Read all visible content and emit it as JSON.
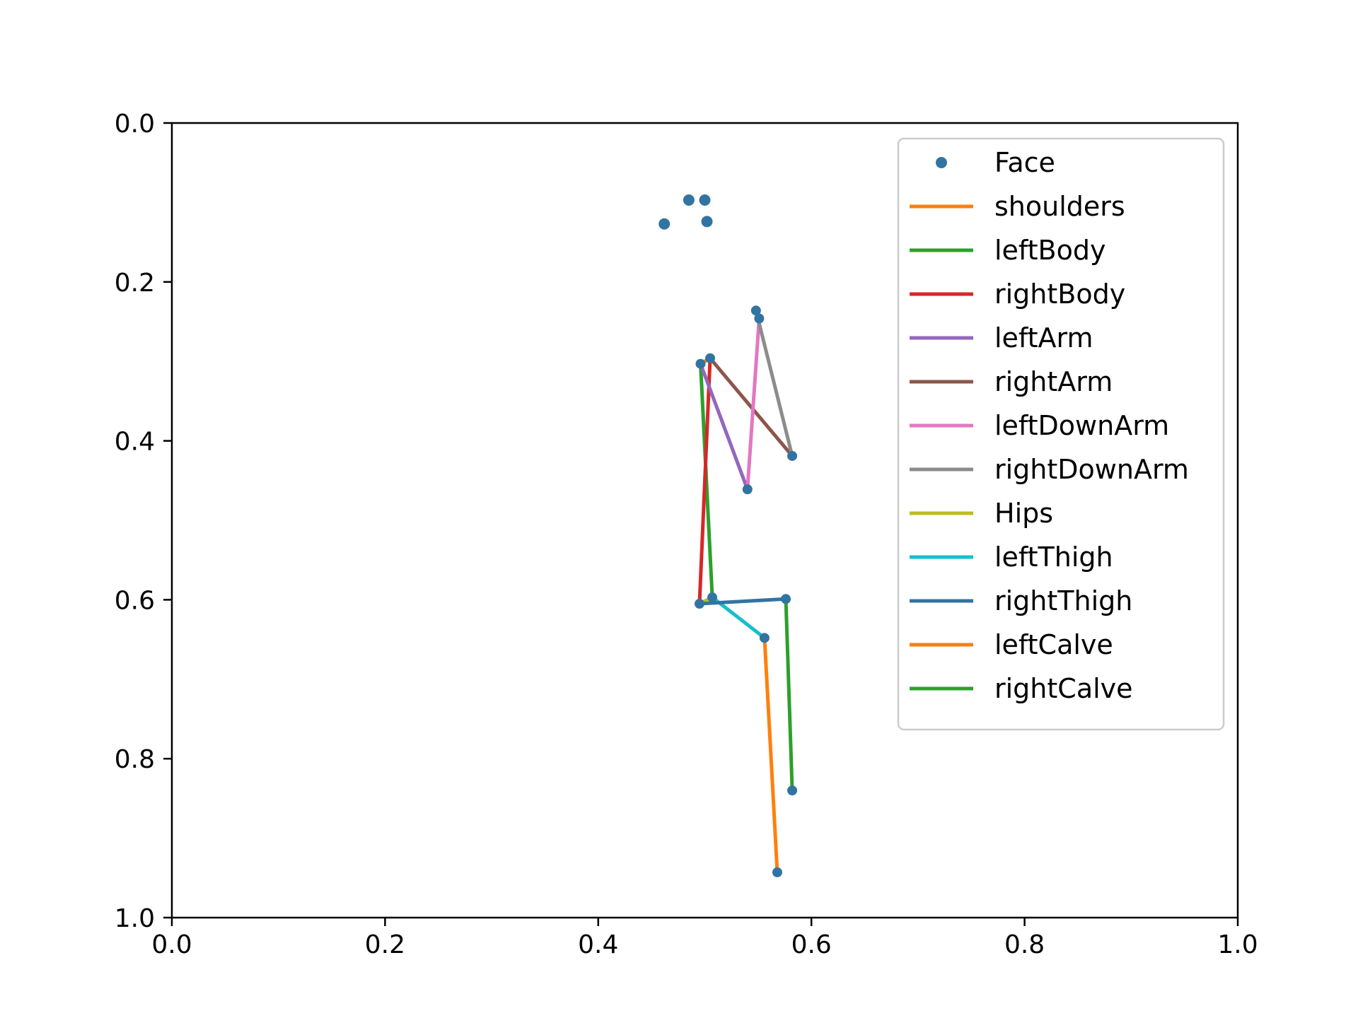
{
  "chart_data": {
    "type": "line",
    "title": "",
    "xlabel": "",
    "ylabel": "",
    "xlim": [
      0.0,
      1.0
    ],
    "ylim": [
      0.0,
      1.0
    ],
    "y_inverted": true,
    "grid": false,
    "legend_position": "top-right",
    "x_ticks": [
      "0.0",
      "0.2",
      "0.4",
      "0.6",
      "0.8",
      "1.0"
    ],
    "y_ticks": [
      "0.0",
      "0.2",
      "0.4",
      "0.6",
      "0.8",
      "1.0"
    ],
    "series": [
      {
        "name": "Face",
        "kind": "points",
        "color": "#3274a1",
        "points": [
          [
            0.462,
            0.127
          ],
          [
            0.485,
            0.097
          ],
          [
            0.5,
            0.097
          ],
          [
            0.502,
            0.124
          ]
        ]
      },
      {
        "name": "shoulders",
        "kind": "line",
        "color": "#ff7f0e",
        "points": [
          [
            0.496,
            0.303
          ],
          [
            0.505,
            0.296
          ]
        ]
      },
      {
        "name": "leftBody",
        "kind": "line",
        "color": "#2ca02c",
        "points": [
          [
            0.496,
            0.303
          ],
          [
            0.507,
            0.597
          ]
        ]
      },
      {
        "name": "rightBody",
        "kind": "line",
        "color": "#d62728",
        "points": [
          [
            0.505,
            0.296
          ],
          [
            0.495,
            0.605
          ]
        ]
      },
      {
        "name": "leftArm",
        "kind": "line",
        "color": "#9467bd",
        "points": [
          [
            0.496,
            0.303
          ],
          [
            0.54,
            0.461
          ]
        ]
      },
      {
        "name": "rightArm",
        "kind": "line",
        "color": "#8c564b",
        "points": [
          [
            0.505,
            0.296
          ],
          [
            0.582,
            0.419
          ]
        ]
      },
      {
        "name": "leftDownArm",
        "kind": "line",
        "color": "#e377c2",
        "points": [
          [
            0.54,
            0.461
          ],
          [
            0.551,
            0.246
          ]
        ]
      },
      {
        "name": "rightDownArm",
        "kind": "line",
        "color": "#8c8c8c",
        "points": [
          [
            0.582,
            0.419
          ],
          [
            0.548,
            0.236
          ]
        ]
      },
      {
        "name": "Hips",
        "kind": "line",
        "color": "#bcbd22",
        "points": [
          [
            0.507,
            0.597
          ],
          [
            0.495,
            0.605
          ]
        ]
      },
      {
        "name": "leftThigh",
        "kind": "line",
        "color": "#17becf",
        "points": [
          [
            0.507,
            0.597
          ],
          [
            0.556,
            0.648
          ]
        ]
      },
      {
        "name": "rightThigh",
        "kind": "line",
        "color": "#3274a1",
        "points": [
          [
            0.495,
            0.605
          ],
          [
            0.576,
            0.599
          ]
        ]
      },
      {
        "name": "leftCalve",
        "kind": "line",
        "color": "#ff7f0e",
        "points": [
          [
            0.556,
            0.648
          ],
          [
            0.568,
            0.943
          ]
        ]
      },
      {
        "name": "rightCalve",
        "kind": "line",
        "color": "#2ca02c",
        "points": [
          [
            0.576,
            0.599
          ],
          [
            0.582,
            0.84
          ]
        ]
      }
    ],
    "joint_points": [
      [
        0.496,
        0.303
      ],
      [
        0.505,
        0.296
      ],
      [
        0.507,
        0.597
      ],
      [
        0.495,
        0.605
      ],
      [
        0.54,
        0.461
      ],
      [
        0.582,
        0.419
      ],
      [
        0.551,
        0.246
      ],
      [
        0.548,
        0.236
      ],
      [
        0.556,
        0.648
      ],
      [
        0.576,
        0.599
      ],
      [
        0.568,
        0.943
      ],
      [
        0.582,
        0.84
      ]
    ],
    "joint_color": "#3274a1"
  }
}
